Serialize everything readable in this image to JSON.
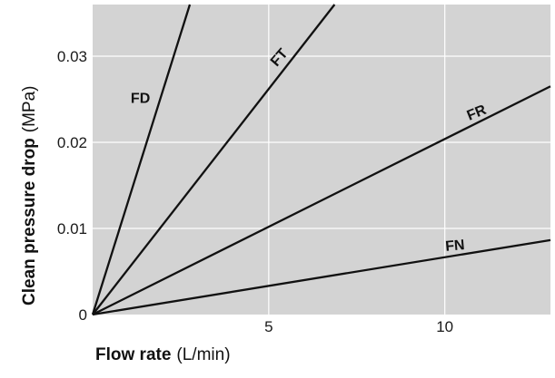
{
  "chart_data": {
    "type": "line",
    "xlabel": "Flow rate",
    "xlabel_unit": "(L/min)",
    "ylabel": "Clean pressure drop",
    "ylabel_unit": "(MPa)",
    "xlim": [
      0,
      13
    ],
    "ylim": [
      0,
      0.036
    ],
    "x_ticks": [
      0,
      5,
      10
    ],
    "x_tick_labels": [
      "0",
      "5",
      "10"
    ],
    "y_ticks": [
      0,
      0.01,
      0.02,
      0.03
    ],
    "y_tick_labels": [
      "0",
      "0.01",
      "0.02",
      "0.03"
    ],
    "grid": true,
    "colors": {
      "plot_bg": "#d3d3d3",
      "grid": "#ffffff",
      "line": "#111111"
    },
    "series": [
      {
        "name": "FD",
        "x": [
          0,
          2.76
        ],
        "y": [
          0,
          0.036
        ]
      },
      {
        "name": "FT",
        "x": [
          0,
          6.87
        ],
        "y": [
          0,
          0.036
        ]
      },
      {
        "name": "FR",
        "x": [
          0,
          13
        ],
        "y": [
          0,
          0.0265
        ]
      },
      {
        "name": "FN",
        "x": [
          0,
          13
        ],
        "y": [
          0,
          0.00865
        ]
      }
    ]
  }
}
